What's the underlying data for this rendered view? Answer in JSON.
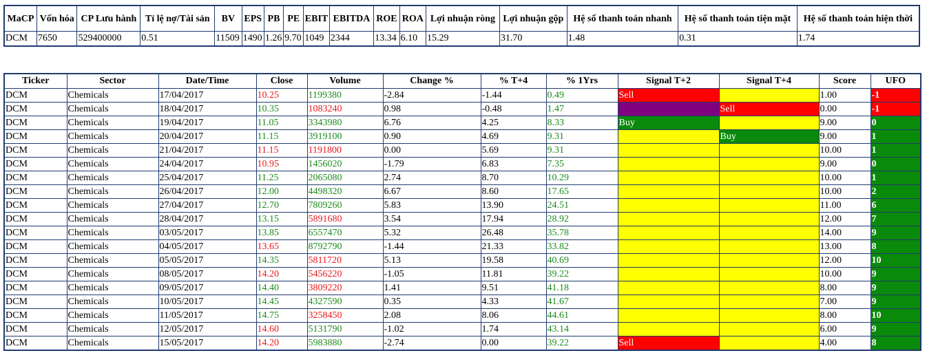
{
  "summary": {
    "headers": [
      "MaCP",
      "Vốn hóa",
      "CP Lưu hành",
      "Tỉ lệ nợ/Tài sản",
      "BV",
      "EPS",
      "PB",
      "PE",
      "EBIT",
      "EBITDA",
      "ROE",
      "ROA",
      "Lợi nhuận ròng",
      "Lợi nhuận gộp",
      "Hệ số thanh toán nhanh",
      "Hệ số thanh toán tiện mặt",
      "Hệ số thanh toán hiện thời"
    ],
    "row": [
      "DCM",
      "7650",
      "529400000",
      "0.51",
      "11509",
      "1490",
      "1.26",
      "9.70",
      "1049",
      "2344",
      "13.34",
      "6.10",
      "15.29",
      "31.70",
      "1.48",
      "0.31",
      "1.74"
    ]
  },
  "history": {
    "headers": [
      "Ticker",
      "Sector",
      "Date/Time",
      "Close",
      "Volume",
      "Change %",
      "% T+4",
      "% 1Yrs",
      "Signal T+2",
      "Signal T+4",
      "Score",
      "UFO"
    ],
    "colors": {
      "red": "#ff0000",
      "yellow": "#ffff00",
      "green": "#0a8a0a",
      "purple": "#800080"
    },
    "rows": [
      {
        "ticker": "DCM",
        "sector": "Chemicals",
        "date": "17/04/2017",
        "close": "10.25",
        "close_c": "red",
        "volume": "1199380",
        "volume_c": "green",
        "change": "-2.84",
        "t4": "-1.44",
        "yr": "0.49",
        "s2": "Sell",
        "s2_bg": "red",
        "s4": "",
        "s4_bg": "yellow",
        "score": "1.00",
        "ufo": "-1",
        "ufo_bg": "red"
      },
      {
        "ticker": "DCM",
        "sector": "Chemicals",
        "date": "18/04/2017",
        "close": "10.35",
        "close_c": "green",
        "volume": "1083240",
        "volume_c": "red",
        "change": "0.98",
        "t4": "-0.48",
        "yr": "1.47",
        "s2": "",
        "s2_bg": "purple",
        "s4": "Sell",
        "s4_bg": "red",
        "score": "0.00",
        "ufo": "-1",
        "ufo_bg": "red"
      },
      {
        "ticker": "DCM",
        "sector": "Chemicals",
        "date": "19/04/2017",
        "close": "11.05",
        "close_c": "green",
        "volume": "3343980",
        "volume_c": "green",
        "change": "6.76",
        "t4": "4.25",
        "yr": "8.33",
        "s2": "Buy",
        "s2_bg": "green",
        "s4": "",
        "s4_bg": "yellow",
        "score": "9.00",
        "ufo": "0",
        "ufo_bg": "green"
      },
      {
        "ticker": "DCM",
        "sector": "Chemicals",
        "date": "20/04/2017",
        "close": "11.15",
        "close_c": "green",
        "volume": "3919100",
        "volume_c": "green",
        "change": "0.90",
        "t4": "4.69",
        "yr": "9.31",
        "s2": "",
        "s2_bg": "yellow",
        "s4": "Buy",
        "s4_bg": "green",
        "score": "9.00",
        "ufo": "1",
        "ufo_bg": "green"
      },
      {
        "ticker": "DCM",
        "sector": "Chemicals",
        "date": "21/04/2017",
        "close": "11.15",
        "close_c": "red",
        "volume": "1191800",
        "volume_c": "red",
        "change": "0.00",
        "t4": "5.69",
        "yr": "9.31",
        "s2": "",
        "s2_bg": "yellow",
        "s4": "",
        "s4_bg": "yellow",
        "score": "10.00",
        "ufo": "1",
        "ufo_bg": "green"
      },
      {
        "ticker": "DCM",
        "sector": "Chemicals",
        "date": "24/04/2017",
        "close": "10.95",
        "close_c": "red",
        "volume": "1456020",
        "volume_c": "green",
        "change": "-1.79",
        "t4": "6.83",
        "yr": "7.35",
        "s2": "",
        "s2_bg": "yellow",
        "s4": "",
        "s4_bg": "yellow",
        "score": "9.00",
        "ufo": "0",
        "ufo_bg": "green"
      },
      {
        "ticker": "DCM",
        "sector": "Chemicals",
        "date": "25/04/2017",
        "close": "11.25",
        "close_c": "green",
        "volume": "2065080",
        "volume_c": "green",
        "change": "2.74",
        "t4": "8.70",
        "yr": "10.29",
        "s2": "",
        "s2_bg": "yellow",
        "s4": "",
        "s4_bg": "yellow",
        "score": "10.00",
        "ufo": "1",
        "ufo_bg": "green"
      },
      {
        "ticker": "DCM",
        "sector": "Chemicals",
        "date": "26/04/2017",
        "close": "12.00",
        "close_c": "green",
        "volume": "4498320",
        "volume_c": "green",
        "change": "6.67",
        "t4": "8.60",
        "yr": "17.65",
        "s2": "",
        "s2_bg": "yellow",
        "s4": "",
        "s4_bg": "yellow",
        "score": "10.00",
        "ufo": "2",
        "ufo_bg": "green"
      },
      {
        "ticker": "DCM",
        "sector": "Chemicals",
        "date": "27/04/2017",
        "close": "12.70",
        "close_c": "green",
        "volume": "7809260",
        "volume_c": "green",
        "change": "5.83",
        "t4": "13.90",
        "yr": "24.51",
        "s2": "",
        "s2_bg": "yellow",
        "s4": "",
        "s4_bg": "yellow",
        "score": "11.00",
        "ufo": "6",
        "ufo_bg": "green"
      },
      {
        "ticker": "DCM",
        "sector": "Chemicals",
        "date": "28/04/2017",
        "close": "13.15",
        "close_c": "green",
        "volume": "5891680",
        "volume_c": "red",
        "change": "3.54",
        "t4": "17.94",
        "yr": "28.92",
        "s2": "",
        "s2_bg": "yellow",
        "s4": "",
        "s4_bg": "yellow",
        "score": "12.00",
        "ufo": "7",
        "ufo_bg": "green"
      },
      {
        "ticker": "DCM",
        "sector": "Chemicals",
        "date": "03/05/2017",
        "close": "13.85",
        "close_c": "green",
        "volume": "6557470",
        "volume_c": "green",
        "change": "5.32",
        "t4": "26.48",
        "yr": "35.78",
        "s2": "",
        "s2_bg": "yellow",
        "s4": "",
        "s4_bg": "yellow",
        "score": "14.00",
        "ufo": "9",
        "ufo_bg": "green"
      },
      {
        "ticker": "DCM",
        "sector": "Chemicals",
        "date": "04/05/2017",
        "close": "13.65",
        "close_c": "red",
        "volume": "8792790",
        "volume_c": "green",
        "change": "-1.44",
        "t4": "21.33",
        "yr": "33.82",
        "s2": "",
        "s2_bg": "yellow",
        "s4": "",
        "s4_bg": "yellow",
        "score": "13.00",
        "ufo": "8",
        "ufo_bg": "green"
      },
      {
        "ticker": "DCM",
        "sector": "Chemicals",
        "date": "05/05/2017",
        "close": "14.35",
        "close_c": "green",
        "volume": "5811720",
        "volume_c": "red",
        "change": "5.13",
        "t4": "19.58",
        "yr": "40.69",
        "s2": "",
        "s2_bg": "yellow",
        "s4": "",
        "s4_bg": "yellow",
        "score": "12.00",
        "ufo": "10",
        "ufo_bg": "green"
      },
      {
        "ticker": "DCM",
        "sector": "Chemicals",
        "date": "08/05/2017",
        "close": "14.20",
        "close_c": "red",
        "volume": "5456220",
        "volume_c": "red",
        "change": "-1.05",
        "t4": "11.81",
        "yr": "39.22",
        "s2": "",
        "s2_bg": "yellow",
        "s4": "",
        "s4_bg": "yellow",
        "score": "10.00",
        "ufo": "9",
        "ufo_bg": "green"
      },
      {
        "ticker": "DCM",
        "sector": "Chemicals",
        "date": "09/05/2017",
        "close": "14.40",
        "close_c": "green",
        "volume": "3809220",
        "volume_c": "red",
        "change": "1.41",
        "t4": "9.51",
        "yr": "41.18",
        "s2": "",
        "s2_bg": "yellow",
        "s4": "",
        "s4_bg": "yellow",
        "score": "8.00",
        "ufo": "9",
        "ufo_bg": "green"
      },
      {
        "ticker": "DCM",
        "sector": "Chemicals",
        "date": "10/05/2017",
        "close": "14.45",
        "close_c": "green",
        "volume": "4327590",
        "volume_c": "green",
        "change": "0.35",
        "t4": "4.33",
        "yr": "41.67",
        "s2": "",
        "s2_bg": "yellow",
        "s4": "",
        "s4_bg": "yellow",
        "score": "7.00",
        "ufo": "9",
        "ufo_bg": "green"
      },
      {
        "ticker": "DCM",
        "sector": "Chemicals",
        "date": "11/05/2017",
        "close": "14.75",
        "close_c": "green",
        "volume": "3258450",
        "volume_c": "red",
        "change": "2.08",
        "t4": "8.06",
        "yr": "44.61",
        "s2": "",
        "s2_bg": "yellow",
        "s4": "",
        "s4_bg": "yellow",
        "score": "8.00",
        "ufo": "10",
        "ufo_bg": "green"
      },
      {
        "ticker": "DCM",
        "sector": "Chemicals",
        "date": "12/05/2017",
        "close": "14.60",
        "close_c": "red",
        "volume": "5131790",
        "volume_c": "green",
        "change": "-1.02",
        "t4": "1.74",
        "yr": "43.14",
        "s2": "",
        "s2_bg": "yellow",
        "s4": "",
        "s4_bg": "yellow",
        "score": "6.00",
        "ufo": "9",
        "ufo_bg": "green"
      },
      {
        "ticker": "DCM",
        "sector": "Chemicals",
        "date": "15/05/2017",
        "close": "14.20",
        "close_c": "red",
        "volume": "5983880",
        "volume_c": "green",
        "change": "-2.74",
        "t4": "0.00",
        "yr": "39.22",
        "s2": "Sell",
        "s2_bg": "red",
        "s4": "",
        "s4_bg": "yellow",
        "score": "4.00",
        "ufo": "8",
        "ufo_bg": "green"
      }
    ]
  }
}
